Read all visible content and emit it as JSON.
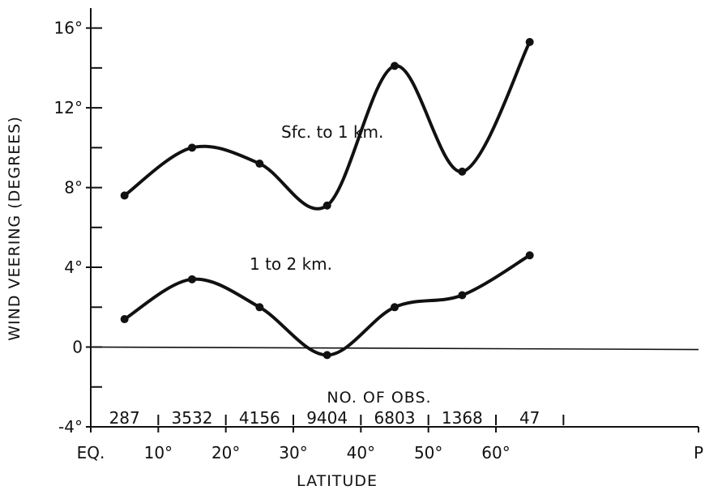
{
  "chart_data": {
    "type": "line",
    "xlabel": "LATITUDE",
    "ylabel": "WIND VEERING (DEGREES)",
    "xlim": [
      0,
      90
    ],
    "ylim": [
      -4,
      17
    ],
    "x_ticks": [
      {
        "value": 0,
        "label": "EQ."
      },
      {
        "value": 10,
        "label": "10°"
      },
      {
        "value": 20,
        "label": "20°"
      },
      {
        "value": 30,
        "label": "30°"
      },
      {
        "value": 40,
        "label": "40°"
      },
      {
        "value": 50,
        "label": "50°"
      },
      {
        "value": 60,
        "label": "60°"
      },
      {
        "value": 90,
        "label": "P"
      }
    ],
    "y_ticks": [
      {
        "value": 16,
        "label": "16°"
      },
      {
        "value": 12,
        "label": "12°"
      },
      {
        "value": 8,
        "label": "8°"
      },
      {
        "value": 4,
        "label": "4°"
      },
      {
        "value": 0,
        "label": "0"
      },
      {
        "value": -4,
        "label": "-4°"
      }
    ],
    "y_minor_ticks": [
      14,
      10,
      6,
      2,
      -2
    ],
    "zero_line": true,
    "grid": false,
    "series": [
      {
        "name": "Sfc. to 1 km.",
        "x": [
          5,
          15,
          25,
          35,
          45,
          55,
          65
        ],
        "y": [
          7.6,
          10.0,
          9.2,
          7.1,
          14.1,
          8.8,
          15.3
        ]
      },
      {
        "name": "1 to 2 km.",
        "x": [
          5,
          15,
          25,
          35,
          45,
          55,
          65
        ],
        "y": [
          1.4,
          3.4,
          2.0,
          -0.4,
          2.0,
          2.6,
          4.6
        ]
      }
    ],
    "annotation": "NO. OF OBS.",
    "obs_counts": [
      "287",
      "3532",
      "4156",
      "9404",
      "6803",
      "1368",
      "47"
    ],
    "obs_separators": [
      10,
      20,
      30,
      40,
      50,
      60,
      70
    ]
  }
}
